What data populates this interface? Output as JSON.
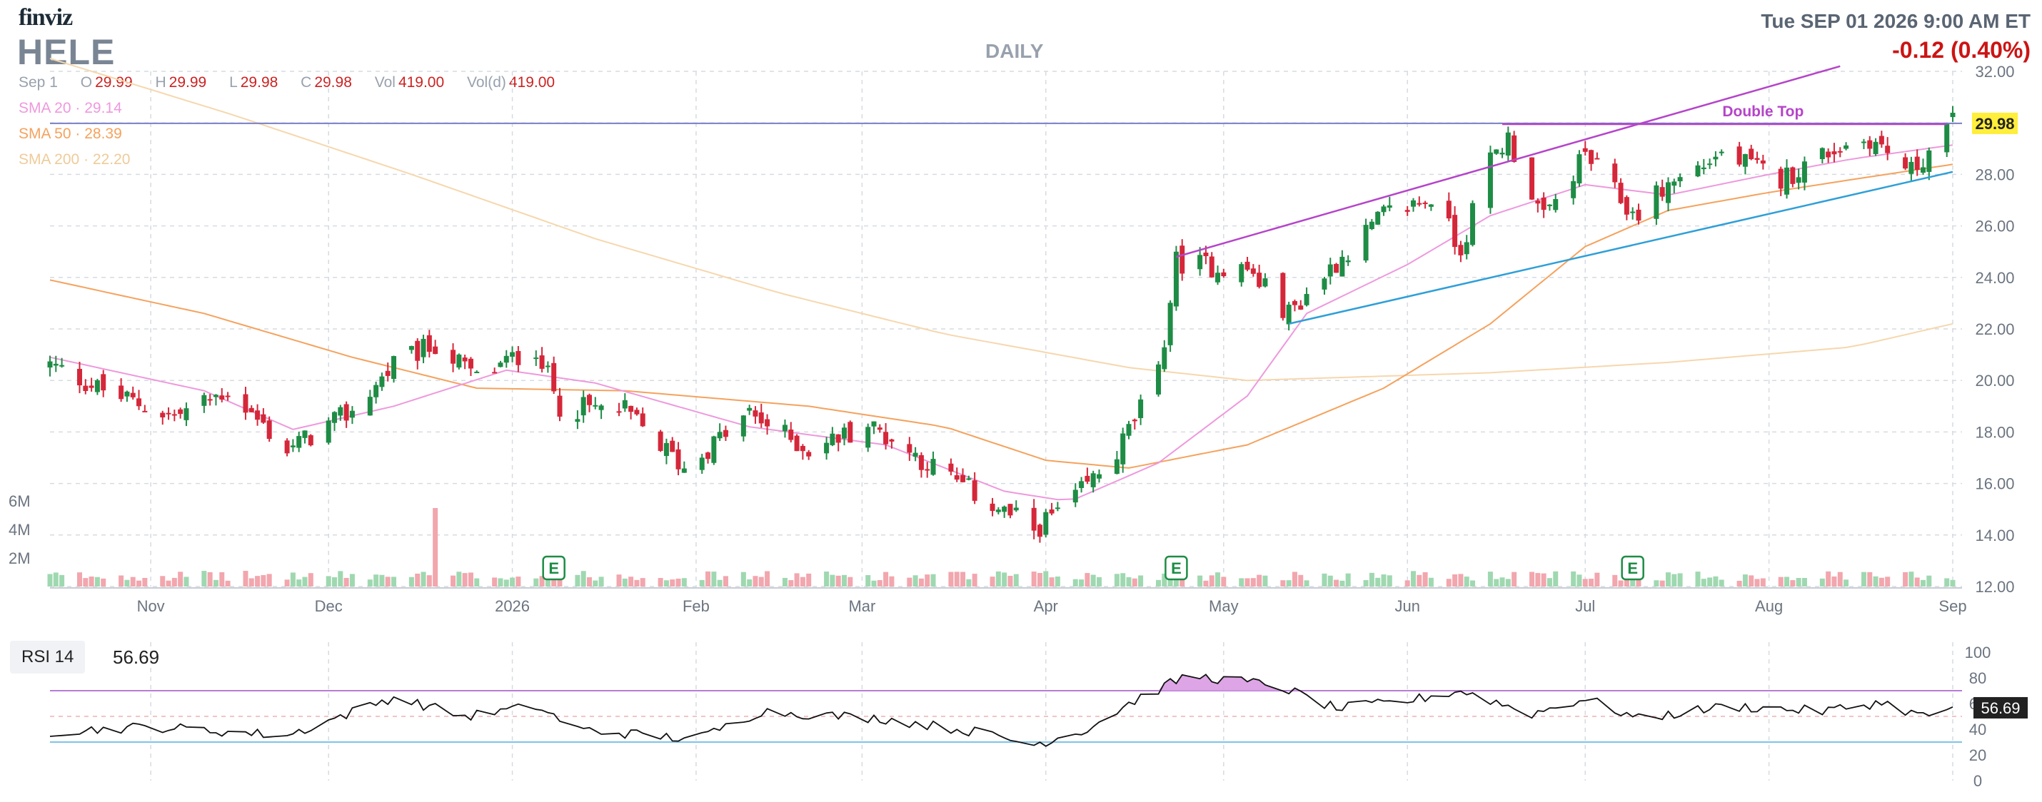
{
  "header": {
    "logo": "finviz",
    "ticker": "HELE",
    "period": "DAILY",
    "datetime": "Tue SEP 01 2026 9:00 AM ET",
    "change": "-0.12 (0.40%)"
  },
  "ohlc": {
    "date": "Sep 1",
    "open_label": "O",
    "open": "29.99",
    "high_label": "H",
    "high": "29.99",
    "low_label": "L",
    "low": "29.98",
    "close_label": "C",
    "close": "29.98",
    "vol_label": "Vol",
    "vol": "419.00",
    "vold_label": "Vol(d)",
    "vold": "419.00"
  },
  "smas": [
    {
      "label": "SMA 20",
      "value": "29.14",
      "color": "#ee99dd"
    },
    {
      "label": "SMA 50",
      "value": "28.39",
      "color": "#f5a25d"
    },
    {
      "label": "SMA 200",
      "value": "22.20",
      "color": "#f6d7ad"
    }
  ],
  "colors": {
    "up": "#1e8c45",
    "down": "#d5273a",
    "vol_up": "#9fd8b0",
    "vol_down": "#f2a6ad",
    "channel": "#b544c9",
    "trend": "#2f9fd8",
    "hline": "#7a7fc8",
    "price_label_bg": "#ffee3a"
  },
  "annotations": {
    "double_top": "Double Top",
    "earnings_marker": "E",
    "last_price_tag": "29.98"
  },
  "rsi": {
    "label": "RSI 14",
    "value": "56.69",
    "levels": [
      100,
      80,
      60,
      40,
      20,
      0
    ],
    "overbought": 70,
    "oversold": 30
  },
  "chart_data": {
    "type": "candlestick",
    "title": "HELE",
    "x_labels": [
      "Nov",
      "Dec",
      "2026",
      "Feb",
      "Mar",
      "Apr",
      "May",
      "Jun",
      "Jul",
      "Aug",
      "Sep"
    ],
    "y_ticks": [
      "32.00",
      "30.00",
      "28.00",
      "26.00",
      "24.00",
      "22.00",
      "20.00",
      "18.00",
      "16.00",
      "14.00",
      "12.00"
    ],
    "ylim": [
      12,
      32
    ],
    "volume_ticks": [
      "6M",
      "4M",
      "2M"
    ],
    "earnings_dates": [
      "Jan 8",
      "Apr 23",
      "Jul 9"
    ],
    "close_keypoints": [
      {
        "date": "Oct 15",
        "close": 20.6
      },
      {
        "date": "Oct 25",
        "close": 19.5
      },
      {
        "date": "Nov 5",
        "close": 18.6
      },
      {
        "date": "Nov 14",
        "close": 19.6
      },
      {
        "date": "Nov 24",
        "close": 17.3
      },
      {
        "date": "Dec 5",
        "close": 18.8
      },
      {
        "date": "Dec 12",
        "close": 20.6
      },
      {
        "date": "Dec 19",
        "close": 21.4
      },
      {
        "date": "Dec 26",
        "close": 20.1
      },
      {
        "date": "Jan 5",
        "close": 21.3
      },
      {
        "date": "Jan 9",
        "close": 19.0
      },
      {
        "date": "Jan 20",
        "close": 18.8
      },
      {
        "date": "Jan 30",
        "close": 16.6
      },
      {
        "date": "Feb 10",
        "close": 18.7
      },
      {
        "date": "Feb 20",
        "close": 17.3
      },
      {
        "date": "Mar 2",
        "close": 18.3
      },
      {
        "date": "Mar 12",
        "close": 16.8
      },
      {
        "date": "Mar 20",
        "close": 15.6
      },
      {
        "date": "Mar 30",
        "close": 14.2
      },
      {
        "date": "Apr 6",
        "close": 15.4
      },
      {
        "date": "Apr 13",
        "close": 17.2
      },
      {
        "date": "Apr 20",
        "close": 20.2
      },
      {
        "date": "Apr 23",
        "close": 24.6
      },
      {
        "date": "May 5",
        "close": 24.3
      },
      {
        "date": "May 12",
        "close": 22.6
      },
      {
        "date": "May 20",
        "close": 24.6
      },
      {
        "date": "May 28",
        "close": 26.4
      },
      {
        "date": "Jun 5",
        "close": 27.1
      },
      {
        "date": "Jun 10",
        "close": 25.1
      },
      {
        "date": "Jun 15",
        "close": 28.6
      },
      {
        "date": "Jun 18",
        "close": 29.4
      },
      {
        "date": "Jun 24",
        "close": 26.2
      },
      {
        "date": "Jul 1",
        "close": 28.8
      },
      {
        "date": "Jul 9",
        "close": 26.4
      },
      {
        "date": "Jul 15",
        "close": 27.6
      },
      {
        "date": "Jul 24",
        "close": 28.8
      },
      {
        "date": "Aug 3",
        "close": 27.8
      },
      {
        "date": "Aug 11",
        "close": 28.9
      },
      {
        "date": "Aug 18",
        "close": 29.4
      },
      {
        "date": "Aug 25",
        "close": 28.1
      },
      {
        "date": "Sep 1",
        "close": 29.98
      }
    ],
    "sma20_keypoints": [
      {
        "date": "Oct 15",
        "value": 20.9
      },
      {
        "date": "Nov 10",
        "value": 19.6
      },
      {
        "date": "Nov 25",
        "value": 18.1
      },
      {
        "date": "Dec 12",
        "value": 19.0
      },
      {
        "date": "Dec 31",
        "value": 20.4
      },
      {
        "date": "Jan 15",
        "value": 19.9
      },
      {
        "date": "Feb 10",
        "value": 18.2
      },
      {
        "date": "Mar 5",
        "value": 17.5
      },
      {
        "date": "Mar 25",
        "value": 15.7
      },
      {
        "date": "Apr 5",
        "value": 15.3
      },
      {
        "date": "Apr 20",
        "value": 16.8
      },
      {
        "date": "May 5",
        "value": 19.4
      },
      {
        "date": "May 15",
        "value": 22.6
      },
      {
        "date": "Jun 1",
        "value": 24.5
      },
      {
        "date": "Jun 15",
        "value": 26.4
      },
      {
        "date": "Jul 1",
        "value": 27.6
      },
      {
        "date": "Jul 15",
        "value": 27.2
      },
      {
        "date": "Aug 1",
        "value": 28.0
      },
      {
        "date": "Aug 15",
        "value": 28.6
      },
      {
        "date": "Sep 1",
        "value": 29.14
      }
    ],
    "sma50_keypoints": [
      {
        "date": "Oct 15",
        "value": 23.9
      },
      {
        "date": "Nov 10",
        "value": 22.6
      },
      {
        "date": "Dec 5",
        "value": 20.9
      },
      {
        "date": "Dec 26",
        "value": 19.7
      },
      {
        "date": "Jan 20",
        "value": 19.6
      },
      {
        "date": "Feb 20",
        "value": 19.0
      },
      {
        "date": "Mar 15",
        "value": 18.2
      },
      {
        "date": "Apr 1",
        "value": 16.9
      },
      {
        "date": "Apr 15",
        "value": 16.6
      },
      {
        "date": "May 5",
        "value": 17.5
      },
      {
        "date": "May 28",
        "value": 19.7
      },
      {
        "date": "Jun 15",
        "value": 22.2
      },
      {
        "date": "Jul 1",
        "value": 25.2
      },
      {
        "date": "Jul 15",
        "value": 26.6
      },
      {
        "date": "Aug 1",
        "value": 27.3
      },
      {
        "date": "Aug 15",
        "value": 27.8
      },
      {
        "date": "Sep 1",
        "value": 28.39
      }
    ],
    "sma200_keypoints": [
      {
        "date": "Oct 15",
        "value": 32.5
      },
      {
        "date": "Nov 15",
        "value": 30.3
      },
      {
        "date": "Dec 15",
        "value": 28.0
      },
      {
        "date": "Jan 15",
        "value": 25.5
      },
      {
        "date": "Feb 15",
        "value": 23.4
      },
      {
        "date": "Mar 15",
        "value": 21.8
      },
      {
        "date": "Apr 15",
        "value": 20.5
      },
      {
        "date": "May 5",
        "value": 20.0
      },
      {
        "date": "Jun 15",
        "value": 20.3
      },
      {
        "date": "Jul 15",
        "value": 20.7
      },
      {
        "date": "Aug 15",
        "value": 21.3
      },
      {
        "date": "Sep 1",
        "value": 22.2
      }
    ],
    "rsi_keypoints": [
      {
        "date": "Oct 15",
        "value": 38
      },
      {
        "date": "Nov 1",
        "value": 42
      },
      {
        "date": "Nov 24",
        "value": 35
      },
      {
        "date": "Dec 12",
        "value": 65
      },
      {
        "date": "Dec 24",
        "value": 50
      },
      {
        "date": "Jan 5",
        "value": 58
      },
      {
        "date": "Jan 12",
        "value": 40
      },
      {
        "date": "Feb 1",
        "value": 32
      },
      {
        "date": "Feb 12",
        "value": 54
      },
      {
        "date": "Mar 5",
        "value": 48
      },
      {
        "date": "Mar 20",
        "value": 38
      },
      {
        "date": "Mar 30",
        "value": 28
      },
      {
        "date": "Apr 8",
        "value": 40
      },
      {
        "date": "Apr 15",
        "value": 60
      },
      {
        "date": "Apr 25",
        "value": 82
      },
      {
        "date": "May 10",
        "value": 74
      },
      {
        "date": "May 20",
        "value": 56
      },
      {
        "date": "Jun 1",
        "value": 62
      },
      {
        "date": "Jun 10",
        "value": 70
      },
      {
        "date": "Jun 22",
        "value": 52
      },
      {
        "date": "Jul 1",
        "value": 64
      },
      {
        "date": "Jul 10",
        "value": 48
      },
      {
        "date": "Jul 25",
        "value": 58
      },
      {
        "date": "Aug 10",
        "value": 54
      },
      {
        "date": "Aug 20",
        "value": 61
      },
      {
        "date": "Aug 27",
        "value": 50
      },
      {
        "date": "Sep 1",
        "value": 56.69
      }
    ]
  }
}
